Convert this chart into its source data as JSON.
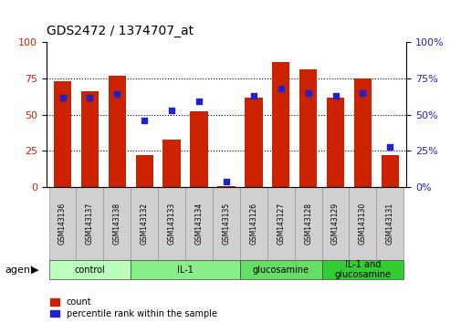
{
  "title": "GDS2472 / 1374707_at",
  "samples": [
    "GSM143136",
    "GSM143137",
    "GSM143138",
    "GSM143132",
    "GSM143133",
    "GSM143134",
    "GSM143135",
    "GSM143126",
    "GSM143127",
    "GSM143128",
    "GSM143129",
    "GSM143130",
    "GSM143131"
  ],
  "count_values": [
    73,
    66,
    77,
    22,
    33,
    52,
    1,
    62,
    86,
    81,
    62,
    75,
    22
  ],
  "percentile_values": [
    62,
    62,
    64,
    46,
    53,
    59,
    4,
    63,
    68,
    65,
    63,
    65,
    28
  ],
  "groups": [
    {
      "label": "control",
      "start": 0,
      "end": 3,
      "color": "#bbffbb"
    },
    {
      "label": "IL-1",
      "start": 3,
      "end": 7,
      "color": "#88ee88"
    },
    {
      "label": "glucosamine",
      "start": 7,
      "end": 10,
      "color": "#66dd66"
    },
    {
      "label": "IL-1 and\nglucosamine",
      "start": 10,
      "end": 13,
      "color": "#33cc33"
    }
  ],
  "bar_color": "#cc2200",
  "scatter_color": "#2222cc",
  "ylim": [
    0,
    100
  ],
  "yticks": [
    0,
    25,
    50,
    75,
    100
  ],
  "ylabel_left_color": "#cc2200",
  "ylabel_right_color": "#2222cc",
  "background_color": "#ffffff",
  "tick_box_color": "#d0d0d0",
  "tick_box_edge": "#999999",
  "agent_label": "agent",
  "legend_count": "count",
  "legend_percentile": "percentile rank within the sample",
  "grid_vals": [
    25,
    50,
    75
  ]
}
